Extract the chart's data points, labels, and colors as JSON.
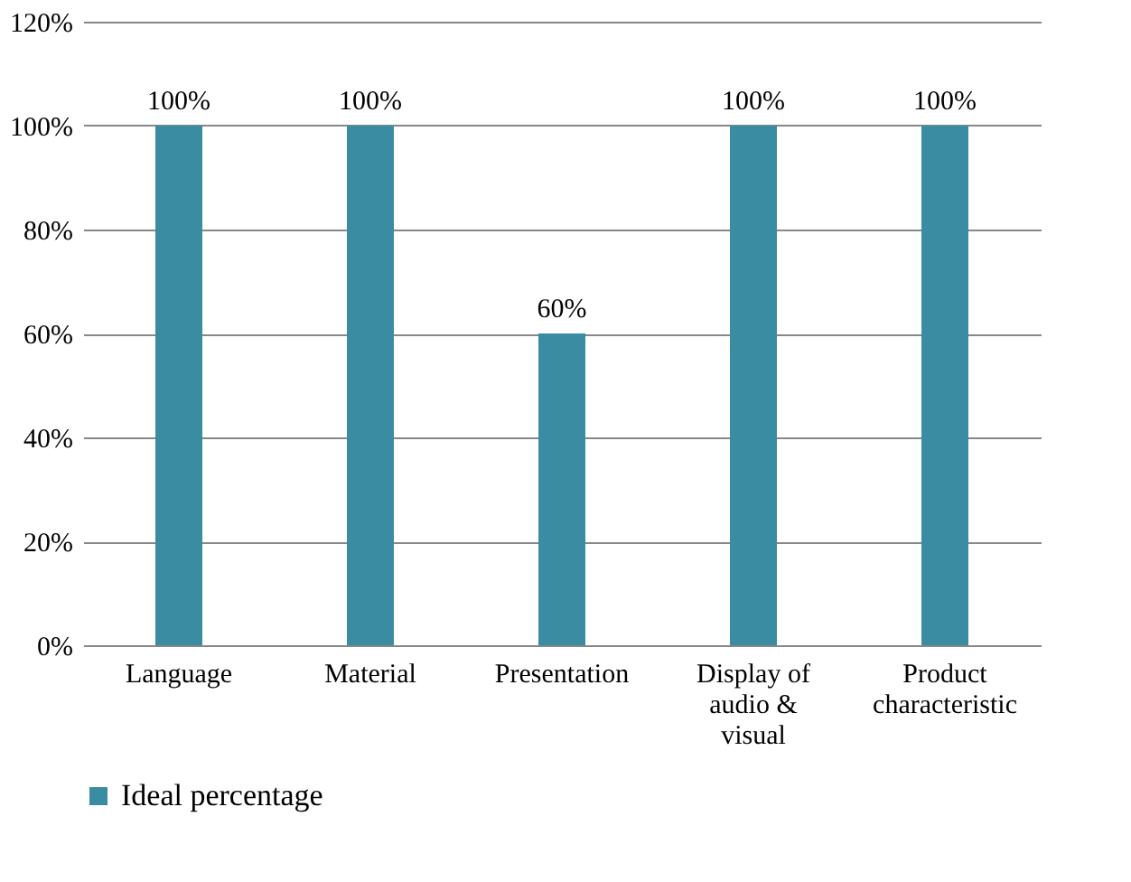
{
  "chart_data": {
    "type": "bar",
    "categories": [
      "Language",
      "Material",
      "Presentation",
      "Display of audio & visual",
      "Product characteristic"
    ],
    "series": [
      {
        "name": "Ideal percentage",
        "color": "#3a8ca3",
        "values": [
          100,
          100,
          60,
          100,
          100
        ]
      }
    ],
    "ylim": [
      0,
      120
    ],
    "yticks": [
      {
        "value": 0,
        "label": "0%"
      },
      {
        "value": 20,
        "label": "20%"
      },
      {
        "value": 40,
        "label": "40%"
      },
      {
        "value": 60,
        "label": "60%"
      },
      {
        "value": 80,
        "label": "80%"
      },
      {
        "value": 100,
        "label": "100%"
      },
      {
        "value": 120,
        "label": "120%"
      }
    ],
    "value_labels": [
      "100%",
      "100%",
      "60%",
      "100%",
      "100%"
    ],
    "grid": "y",
    "legend": "bottom"
  }
}
